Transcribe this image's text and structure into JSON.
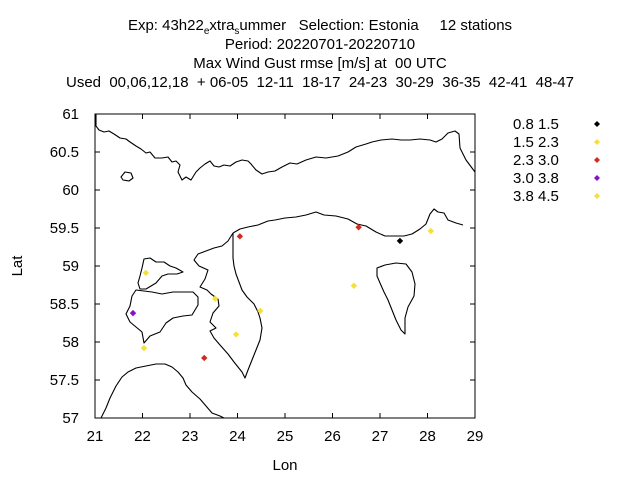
{
  "chart_data": {
    "type": "scatter",
    "title_lines": [
      {
        "parts": [
          {
            "t": "Exp: 43h22",
            "sub": false
          },
          {
            "t": "e",
            "sub": true
          },
          {
            "t": "xtra",
            "sub": false
          },
          {
            "t": "s",
            "sub": true
          },
          {
            "t": "ummer   Selection: Estonia     12 stations",
            "sub": false
          }
        ]
      },
      {
        "text": "Period: 20220701-20220710"
      },
      {
        "text": "Max Wind Gust rmse [m/s] at  00 UTC"
      },
      {
        "text": "Used  00,06,12,18  + 06-05  12-11  18-17  24-23  30-29  36-35  42-41  48-47"
      }
    ],
    "xlabel": "Lon",
    "ylabel": "Lat",
    "xlim": [
      21,
      29
    ],
    "ylim": [
      57,
      61
    ],
    "xticks": [
      "21",
      "22",
      "23",
      "24",
      "25",
      "26",
      "27",
      "28",
      "29"
    ],
    "yticks": [
      "57",
      "57.5",
      "58",
      "58.5",
      "59",
      "59.5",
      "60",
      "60.5",
      "61"
    ],
    "legend_position": "right",
    "legend": [
      {
        "label": "0.8 1.5",
        "color": "#000000"
      },
      {
        "label": "1.5 2.3",
        "color": "#f5e03a"
      },
      {
        "label": "2.3 3.0",
        "color": "#d42a1e"
      },
      {
        "label": "3.0 3.8",
        "color": "#8a10c8"
      },
      {
        "label": "3.8 4.5",
        "color": "#f5e03a"
      }
    ],
    "points": [
      {
        "lon": 27.42,
        "lat": 59.33,
        "bin": 0
      },
      {
        "lon": 26.55,
        "lat": 59.51,
        "bin": 2
      },
      {
        "lon": 24.05,
        "lat": 59.39,
        "bin": 2
      },
      {
        "lon": 23.3,
        "lat": 57.79,
        "bin": 2
      },
      {
        "lon": 21.8,
        "lat": 58.38,
        "bin": 3
      },
      {
        "lon": 28.07,
        "lat": 59.46,
        "bin": 1
      },
      {
        "lon": 22.07,
        "lat": 58.91,
        "bin": 1
      },
      {
        "lon": 23.53,
        "lat": 58.57,
        "bin": 1
      },
      {
        "lon": 24.48,
        "lat": 58.41,
        "bin": 1
      },
      {
        "lon": 26.45,
        "lat": 58.74,
        "bin": 1
      },
      {
        "lon": 23.97,
        "lat": 58.1,
        "bin": 1
      },
      {
        "lon": 22.03,
        "lat": 57.92,
        "bin": 1
      }
    ]
  }
}
